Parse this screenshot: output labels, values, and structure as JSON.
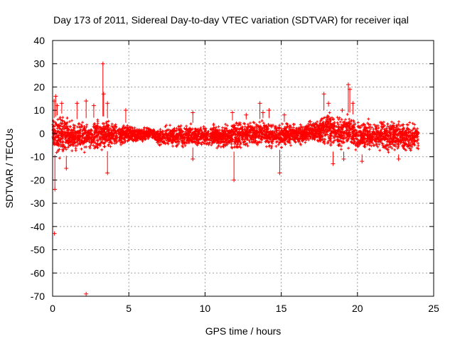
{
  "chart_data": {
    "type": "scatter",
    "title": "Day 173 of 2011, Sidereal Day-to-day VTEC variation (SDTVAR) for receiver iqal",
    "xlabel": "GPS time / hours",
    "ylabel": "SDTVAR / TECUs",
    "xlim": [
      0,
      25
    ],
    "ylim": [
      -70,
      40
    ],
    "xticks": [
      0,
      5,
      10,
      15,
      20,
      25
    ],
    "xtick_labels": [
      "0",
      "5",
      "10",
      "15",
      "20",
      "25"
    ],
    "yticks": [
      -70,
      -60,
      -50,
      -40,
      -30,
      -20,
      -10,
      0,
      10,
      20,
      30,
      40
    ],
    "ytick_labels": [
      "-70",
      "-60",
      "-50",
      "-40",
      "-30",
      "-20",
      "-10",
      "0",
      "10",
      "20",
      "30",
      "40"
    ],
    "grid": true,
    "marker": "+",
    "color": "#ff0000",
    "envelope": {
      "description": "dense scatter band (estimated upper/lower extents at time samples)",
      "x": [
        0.0,
        0.5,
        1.0,
        1.5,
        2.0,
        2.5,
        3.0,
        3.5,
        4.0,
        4.5,
        5.0,
        5.5,
        6.0,
        6.5,
        7.0,
        7.5,
        8.0,
        8.5,
        9.0,
        9.5,
        10.0,
        10.5,
        11.0,
        11.5,
        12.0,
        12.5,
        13.0,
        13.5,
        14.0,
        14.5,
        15.0,
        15.5,
        16.0,
        16.5,
        17.0,
        17.5,
        18.0,
        18.5,
        19.0,
        19.5,
        20.0,
        20.5,
        21.0,
        21.5,
        22.0,
        22.5,
        23.0,
        23.5,
        24.0
      ],
      "upper": [
        6,
        9,
        7,
        6,
        7,
        6,
        8,
        7,
        5,
        4,
        5,
        3,
        3,
        3,
        2,
        4,
        4,
        4,
        5,
        4,
        4,
        5,
        4,
        5,
        6,
        6,
        6,
        6,
        7,
        6,
        5,
        5,
        5,
        5,
        6,
        7,
        12,
        10,
        9,
        9,
        7,
        7,
        6,
        6,
        7,
        7,
        6,
        6,
        4
      ],
      "lower": [
        -8,
        -12,
        -9,
        -9,
        -9,
        -8,
        -9,
        -8,
        -6,
        -5,
        -5,
        -4,
        -4,
        -2,
        -6,
        -6,
        -6,
        -6,
        -6,
        -6,
        -6,
        -6,
        -7,
        -7,
        -8,
        -7,
        -6,
        -6,
        -7,
        -7,
        -7,
        -5,
        -6,
        -5,
        -5,
        -6,
        -7,
        -8,
        -8,
        -7,
        -9,
        -9,
        -7,
        -8,
        -9,
        -9,
        -9,
        -9,
        -8
      ]
    },
    "spikes": [
      {
        "x": 0.1,
        "y": 14
      },
      {
        "x": 0.2,
        "y": 16
      },
      {
        "x": 0.3,
        "y": 12
      },
      {
        "x": 0.15,
        "y": -24
      },
      {
        "x": 0.12,
        "y": -43
      },
      {
        "x": 0.6,
        "y": 13
      },
      {
        "x": 0.9,
        "y": -15
      },
      {
        "x": 1.6,
        "y": 13
      },
      {
        "x": 2.2,
        "y": 14
      },
      {
        "x": 2.2,
        "y": -69
      },
      {
        "x": 2.7,
        "y": 12
      },
      {
        "x": 3.3,
        "y": 30
      },
      {
        "x": 3.35,
        "y": 17
      },
      {
        "x": 3.6,
        "y": 13
      },
      {
        "x": 3.6,
        "y": -17
      },
      {
        "x": 4.8,
        "y": 10
      },
      {
        "x": 9.2,
        "y": 9
      },
      {
        "x": 9.2,
        "y": -11
      },
      {
        "x": 11.8,
        "y": 9
      },
      {
        "x": 11.9,
        "y": -20
      },
      {
        "x": 12.7,
        "y": 8
      },
      {
        "x": 13.6,
        "y": 13
      },
      {
        "x": 13.8,
        "y": 9
      },
      {
        "x": 14.2,
        "y": 10
      },
      {
        "x": 14.9,
        "y": -17
      },
      {
        "x": 15.2,
        "y": 8
      },
      {
        "x": 16.9,
        "y": 5
      },
      {
        "x": 17.8,
        "y": 17
      },
      {
        "x": 18.1,
        "y": 13
      },
      {
        "x": 19.0,
        "y": 10
      },
      {
        "x": 19.4,
        "y": 21
      },
      {
        "x": 19.5,
        "y": 19
      },
      {
        "x": 19.7,
        "y": 13
      },
      {
        "x": 18.4,
        "y": -13
      },
      {
        "x": 19.1,
        "y": -11
      },
      {
        "x": 20.3,
        "y": -12
      },
      {
        "x": 22.7,
        "y": -11
      }
    ],
    "dense_points": 4200,
    "seed": 173
  }
}
